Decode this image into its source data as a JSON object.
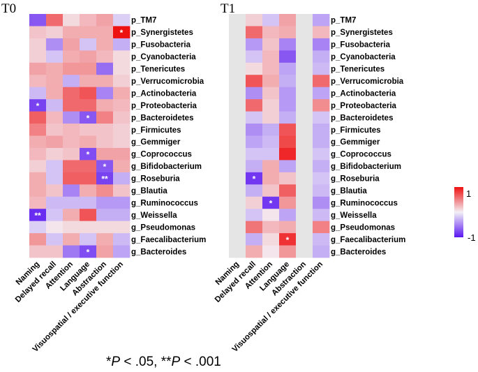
{
  "chart_data": {
    "type": "heatmap",
    "significance_note": {
      "s1": "*",
      "p1": "P",
      "t1": " < .05, **",
      "p2": "P",
      "t2": " < .001"
    },
    "rows": [
      "p_TM7",
      "p_Synergistetes",
      "p_Fusobacteria",
      "p_Cyanobacteria",
      "p_Tenericutes",
      "p_Verrucomicrobia",
      "p_Actinobacteria",
      "p_Proteobacteria",
      "p_Bacteroidetes",
      "p_Firmicutes",
      "g_Gemmiger",
      "g_Coprococcus",
      "g_Bifidobacterium",
      "g_Roseburia",
      "g_Blautia",
      "g_Ruminococcus",
      "g_Weissella",
      "g_Pseudomonas",
      "g_Faecalibacterium",
      "g_Bacteroides"
    ],
    "columns": [
      "Naming",
      "Delayed recall",
      "Attention",
      "Language",
      "Abstraction",
      "Visuospatial / executive function"
    ],
    "legend": {
      "max_label": "1",
      "min_label": "-1",
      "range": [
        -1,
        1
      ]
    },
    "panels": [
      {
        "title": "T0",
        "values": [
          [
            -0.7,
            0.6,
            0.1,
            0.25,
            0.35,
            -0.15
          ],
          [
            0.2,
            0.15,
            0.3,
            0.3,
            0.3,
            1.0
          ],
          [
            0.15,
            -0.45,
            0.35,
            -0.2,
            0.3,
            -0.3
          ],
          [
            0.15,
            -0.2,
            0.3,
            0.35,
            0.25,
            0.1
          ],
          [
            0.35,
            0.3,
            0.4,
            0.4,
            -0.6,
            0.1
          ],
          [
            0.25,
            0.3,
            -0.3,
            0.3,
            0.3,
            0.15
          ],
          [
            -0.25,
            0.3,
            0.6,
            0.7,
            -0.5,
            0.3
          ],
          [
            -0.8,
            -0.25,
            0.6,
            0.6,
            0.3,
            0.25
          ],
          [
            0.65,
            0.25,
            -0.45,
            -0.7,
            0.5,
            0.2
          ],
          [
            0.5,
            0.2,
            0.25,
            0.2,
            0.2,
            0.15
          ],
          [
            0.3,
            0.35,
            0.25,
            0.3,
            0.2,
            0.15
          ],
          [
            0.25,
            0.15,
            0.2,
            -0.75,
            0.35,
            0.35
          ],
          [
            0.15,
            -0.2,
            0.6,
            0.6,
            -0.7,
            0.3
          ],
          [
            0.3,
            -0.2,
            0.65,
            0.65,
            -0.8,
            -0.3
          ],
          [
            0.3,
            0.2,
            -0.5,
            0.3,
            0.45,
            0.2
          ],
          [
            0.25,
            -0.25,
            -0.25,
            -0.25,
            -0.4,
            -0.4
          ],
          [
            -0.9,
            -0.2,
            0.3,
            0.7,
            -0.3,
            -0.3
          ],
          [
            -0.15,
            0.05,
            0.1,
            0.1,
            0.1,
            0.1
          ],
          [
            0.4,
            -0.2,
            0.3,
            -0.2,
            0.3,
            -0.25
          ],
          [
            0.2,
            0.2,
            -0.55,
            -0.75,
            0.35,
            -0.35
          ]
        ],
        "stars": [
          {
            "row": 1,
            "col": 5,
            "mark": "*"
          },
          {
            "row": 7,
            "col": 0,
            "mark": "*"
          },
          {
            "row": 8,
            "col": 3,
            "mark": "*"
          },
          {
            "row": 11,
            "col": 3,
            "mark": "*"
          },
          {
            "row": 12,
            "col": 4,
            "mark": "*"
          },
          {
            "row": 13,
            "col": 4,
            "mark": "**"
          },
          {
            "row": 16,
            "col": 0,
            "mark": "**"
          },
          {
            "row": 19,
            "col": 3,
            "mark": "*"
          }
        ]
      },
      {
        "title": "T1",
        "values": [
          [
            null,
            0.15,
            -0.2,
            0.35,
            null,
            -0.35
          ],
          [
            null,
            0.6,
            0.25,
            0.3,
            null,
            0.25
          ],
          [
            null,
            -0.4,
            0.2,
            -0.5,
            null,
            -0.5
          ],
          [
            null,
            -0.2,
            0.25,
            -0.7,
            null,
            -0.3
          ],
          [
            null,
            0.1,
            0.25,
            -0.35,
            null,
            -0.25
          ],
          [
            null,
            0.7,
            0.3,
            -0.3,
            null,
            0.6
          ],
          [
            null,
            -0.45,
            0.2,
            -0.4,
            null,
            -0.35
          ],
          [
            null,
            0.6,
            0.15,
            -0.4,
            null,
            0.45
          ],
          [
            null,
            -0.2,
            0.15,
            -0.3,
            null,
            -0.2
          ],
          [
            null,
            -0.45,
            -0.3,
            0.7,
            null,
            -0.3
          ],
          [
            null,
            -0.35,
            -0.25,
            0.75,
            null,
            -0.3
          ],
          [
            null,
            -0.2,
            -0.2,
            0.9,
            null,
            -0.2
          ],
          [
            null,
            -0.3,
            0.3,
            -0.35,
            null,
            -0.3
          ],
          [
            null,
            -0.85,
            0.3,
            0.2,
            null,
            -0.2
          ],
          [
            null,
            -0.3,
            0.2,
            0.65,
            null,
            -0.25
          ],
          [
            null,
            0.15,
            -0.85,
            0.4,
            null,
            -0.45
          ],
          [
            null,
            -0.2,
            0.05,
            -0.35,
            null,
            -0.25
          ],
          [
            null,
            0.55,
            0.25,
            0.3,
            null,
            0.5
          ],
          [
            null,
            -0.3,
            0.1,
            0.85,
            null,
            -0.25
          ],
          [
            null,
            0.3,
            0.05,
            0.4,
            null,
            -0.3
          ]
        ],
        "stars": [
          {
            "row": 13,
            "col": 1,
            "mark": "*"
          },
          {
            "row": 15,
            "col": 2,
            "mark": "*"
          },
          {
            "row": 18,
            "col": 3,
            "mark": "*"
          }
        ]
      }
    ]
  }
}
